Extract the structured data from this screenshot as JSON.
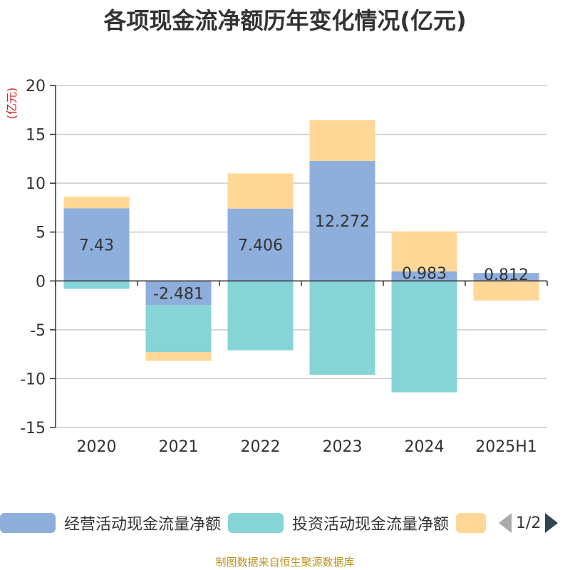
{
  "title": "各项现金流净额历年变化情况(亿元)",
  "source": "制图数据来自恒生聚源数据库",
  "pager_text": "1/2",
  "chart_data": {
    "type": "bar",
    "stacked": true,
    "title": "各项现金流净额历年变化情况(亿元)",
    "ylabel": "(亿元)",
    "ylim": [
      -15,
      20
    ],
    "yticks": [
      20,
      15,
      10,
      5,
      0,
      -5,
      -10,
      -15
    ],
    "categories": [
      "2020",
      "2021",
      "2022",
      "2023",
      "2024",
      "2025H1"
    ],
    "grid": true,
    "legend_position": "bottom",
    "series": [
      {
        "name": "经营活动现金流量净额",
        "color": "#8eaedc",
        "values": [
          7.43,
          -2.481,
          7.406,
          12.272,
          0.983,
          0.812
        ],
        "labels": [
          "7.43",
          "-2.481",
          "7.406",
          "12.272",
          "0.983",
          "0.812"
        ]
      },
      {
        "name": "投资活动现金流量净额",
        "color": "#86d4d6",
        "values": [
          -0.8,
          -4.8,
          -7.1,
          -9.6,
          -11.4,
          0.0
        ]
      },
      {
        "name": "",
        "color": "#ffd898",
        "values": [
          1.2,
          -0.9,
          3.6,
          4.2,
          4.1,
          -2.0
        ]
      }
    ]
  }
}
